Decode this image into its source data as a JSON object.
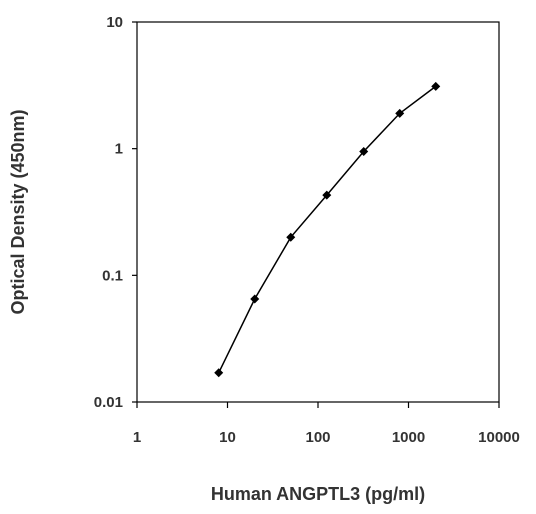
{
  "chart_data": {
    "type": "scatter",
    "title": "",
    "xlabel": "Human ANGPTL3 (pg/ml)",
    "ylabel": "Optical Density (450nm)",
    "x_scale": "log",
    "y_scale": "log",
    "xlim": [
      1,
      10000
    ],
    "ylim": [
      0.01,
      10
    ],
    "x_ticks": [
      "1",
      "10",
      "100",
      "1000",
      "10000"
    ],
    "y_ticks": [
      "10",
      "1",
      "0.1",
      "0.01"
    ],
    "grid": false,
    "legend": "none",
    "series": [
      {
        "x": [
          8,
          20,
          50,
          125,
          320,
          800,
          2000
        ],
        "y": [
          0.017,
          0.065,
          0.2,
          0.43,
          0.95,
          1.9,
          3.1
        ],
        "marker": "diamond",
        "line": true,
        "color": "#000000"
      }
    ]
  }
}
